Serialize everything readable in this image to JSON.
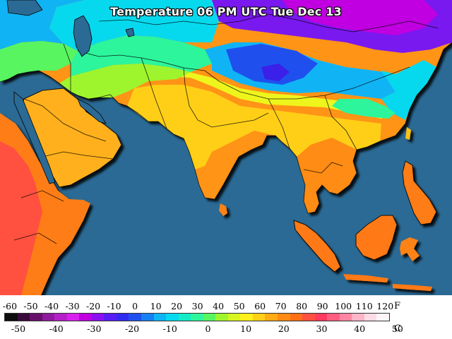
{
  "title": "Temperature 06 PM UTC Tue Dec 13",
  "legend": {
    "fahrenheit_unit": "F",
    "celsius_unit": "C",
    "fahrenheit_ticks": [
      "-60",
      "-50",
      "-40",
      "-30",
      "-20",
      "-10",
      "0",
      "10",
      "20",
      "30",
      "40",
      "50",
      "60",
      "70",
      "80",
      "90",
      "100",
      "110",
      "120"
    ],
    "celsius_ticks": [
      "-50",
      "-40",
      "-30",
      "-20",
      "-10",
      "0",
      "10",
      "20",
      "30",
      "40",
      "50"
    ],
    "fahrenheit_range": [
      -60,
      125
    ],
    "celsius_range": [
      -50,
      51.7
    ],
    "scale_colors": [
      "#0d0d0d",
      "#3a0a3a",
      "#66106b",
      "#8f1a9e",
      "#b520c8",
      "#d91ff0",
      "#c000e0",
      "#8c10f0",
      "#5a1cf5",
      "#2f2cf0",
      "#1f50ee",
      "#1780f2",
      "#10b4f5",
      "#06d9ee",
      "#12ebc6",
      "#2cf59c",
      "#58f560",
      "#9ff52d",
      "#d8f51f",
      "#fff01c",
      "#ffd018",
      "#ffab16",
      "#ff8b14",
      "#ff6f14",
      "#ff5040",
      "#ff3a60",
      "#ff5d80",
      "#ff87a3",
      "#ffb5c8",
      "#ffdbe5",
      "#fff5f8"
    ]
  },
  "colors": {
    "ocean": "#2b6a94",
    "arabia": "#ffb01c",
    "africa_hot": "#ff7d14",
    "india_south": "#ff9417",
    "india_north": "#ffcf18",
    "gangetic": "#eef51c",
    "indochina": "#ff8c14",
    "indonesia": "#ff7a14",
    "iran_turkey": "#9ff52d",
    "central_asia": "#12ebc6",
    "kazakh": "#06d9ee",
    "tibet": "#1f50ee",
    "tibet_cold": "#3a20e8",
    "mongolia": "#7a18f0",
    "siberia": "#c000e0",
    "china_south": "#2cf59c",
    "china_east": "#06d9ee",
    "caucasus": "#10b4f5"
  }
}
